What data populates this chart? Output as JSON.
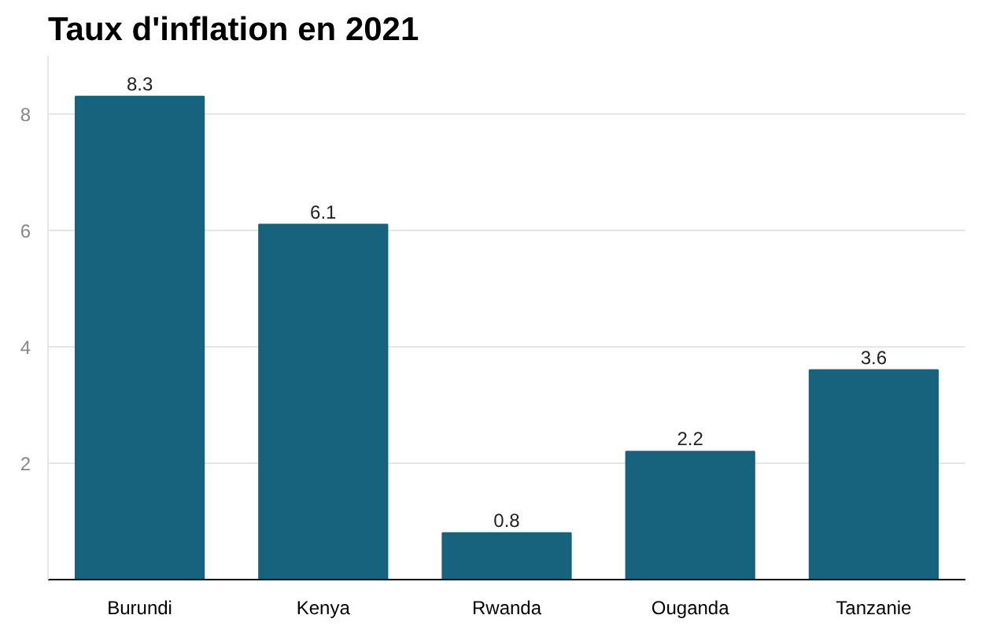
{
  "chart_data": {
    "type": "bar",
    "title": "Taux d'inflation en 2021",
    "categories": [
      "Burundi",
      "Kenya",
      "Rwanda",
      "Ouganda",
      "Tanzanie"
    ],
    "values": [
      8.3,
      6.1,
      0.8,
      2.2,
      3.6
    ],
    "color": "#17627d",
    "ylim": [
      0,
      9
    ],
    "yticks": [
      2,
      4,
      6,
      8
    ],
    "grid": "y",
    "data_labels": true
  }
}
